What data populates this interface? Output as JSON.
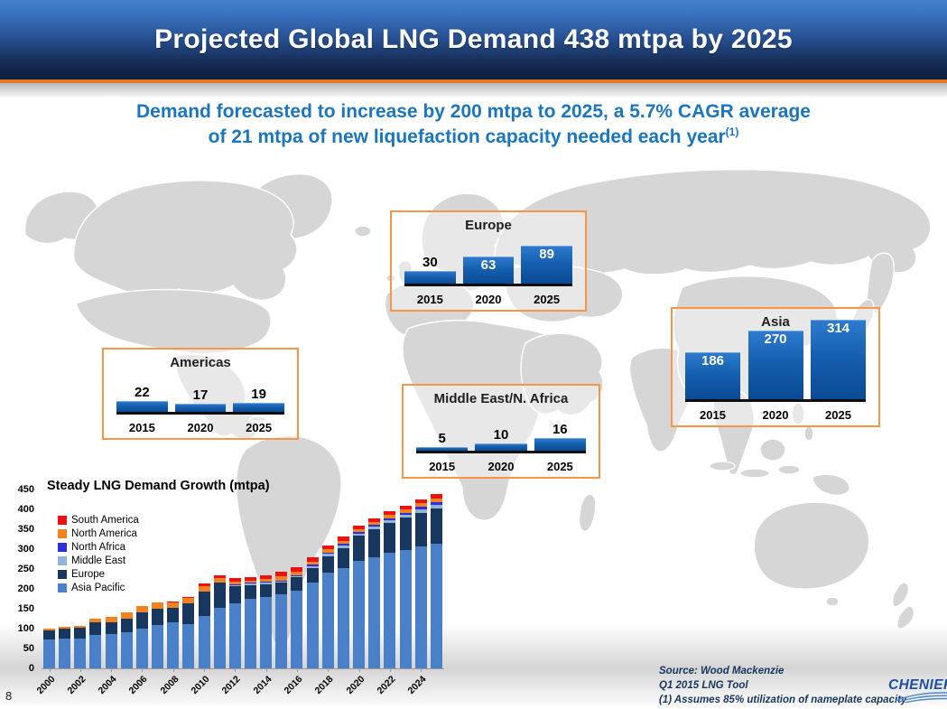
{
  "header": {
    "title": "Projected Global LNG Demand 438 mtpa by 2025"
  },
  "subtitle": {
    "line1": "Demand forecasted to increase by 200 mtpa to 2025, a 5.7% CAGR average",
    "line2": "of 21 mtpa of new liquefaction capacity needed each year",
    "footnote_marker": "(1)"
  },
  "chart_data": [
    {
      "type": "stacked-bar",
      "title": "Steady LNG Demand Growth (mtpa)",
      "xlabel": "",
      "ylabel": "",
      "ylim": [
        0,
        450
      ],
      "yticks": [
        0,
        50,
        100,
        150,
        200,
        250,
        300,
        350,
        400,
        450
      ],
      "grid": false,
      "legend_position": "upper-left",
      "x": [
        2000,
        2001,
        2002,
        2003,
        2004,
        2005,
        2006,
        2007,
        2008,
        2009,
        2010,
        2011,
        2012,
        2013,
        2014,
        2015,
        2016,
        2017,
        2018,
        2019,
        2020,
        2021,
        2022,
        2023,
        2024,
        2025
      ],
      "xtick_labels": [
        "2000",
        "2002",
        "2004",
        "2006",
        "2008",
        "2010",
        "2012",
        "2014",
        "2016",
        "2018",
        "2020",
        "2022",
        "2024"
      ],
      "series": [
        {
          "name": "Asia Pacific",
          "color": "#4a80c8",
          "values": [
            72,
            74,
            76,
            84,
            87,
            90,
            100,
            110,
            115,
            112,
            131,
            153,
            163,
            175,
            180,
            186,
            196,
            215,
            240,
            252,
            270,
            280,
            290,
            298,
            306,
            314
          ]
        },
        {
          "name": "Europe",
          "color": "#17375e",
          "values": [
            24,
            25,
            27,
            31,
            29,
            36,
            41,
            39,
            37,
            51,
            62,
            62,
            44,
            35,
            32,
            30,
            33,
            38,
            43,
            50,
            63,
            70,
            76,
            82,
            86,
            89
          ]
        },
        {
          "name": "Middle East",
          "color": "#92b4d4",
          "values": [
            0,
            0,
            0,
            0,
            0,
            0,
            0,
            0,
            0,
            0,
            1,
            2,
            3,
            4,
            5,
            3,
            4,
            5,
            6,
            7,
            6,
            7,
            7,
            7,
            8,
            8
          ]
        },
        {
          "name": "North Africa",
          "color": "#2e2edf",
          "values": [
            0,
            0,
            0,
            0,
            0,
            0,
            0,
            0,
            0,
            0,
            0,
            0,
            1,
            1,
            1,
            2,
            2,
            3,
            3,
            4,
            4,
            4,
            5,
            5,
            6,
            8
          ]
        },
        {
          "name": "North America",
          "color": "#f08222",
          "values": [
            5,
            5,
            4,
            9,
            14,
            14,
            15,
            16,
            15,
            14,
            13,
            10,
            7,
            6,
            6,
            10,
            9,
            8,
            8,
            8,
            8,
            8,
            8,
            9,
            9,
            9
          ]
        },
        {
          "name": "South America",
          "color": "#ee1111",
          "values": [
            0,
            0,
            0,
            0,
            0,
            0,
            0,
            2,
            2,
            3,
            6,
            8,
            9,
            9,
            10,
            12,
            11,
            11,
            10,
            10,
            9,
            9,
            9,
            9,
            10,
            10
          ]
        }
      ],
      "note": "legend displayed in reverse series order (top segment first)"
    },
    {
      "type": "bar",
      "title": "Americas",
      "categories": [
        "2015",
        "2020",
        "2025"
      ],
      "values": [
        22,
        17,
        19
      ],
      "bar_color": "#1660b0"
    },
    {
      "type": "bar",
      "title": "Europe",
      "categories": [
        "2015",
        "2020",
        "2025"
      ],
      "values": [
        30,
        63,
        89
      ],
      "bar_color": "#1660b0"
    },
    {
      "type": "bar",
      "title": "Middle East/N. Africa",
      "categories": [
        "2015",
        "2020",
        "2025"
      ],
      "values": [
        5,
        10,
        16
      ],
      "bar_color": "#1660b0"
    },
    {
      "type": "bar",
      "title": "Asia",
      "categories": [
        "2015",
        "2020",
        "2025"
      ],
      "values": [
        186,
        270,
        314
      ],
      "bar_color": "#1660b0"
    }
  ],
  "footer": {
    "source_lines": [
      "Source: Wood Mackenzie",
      "Q1 2015 LNG Tool",
      "(1) Assumes 85% utilization of nameplate capacity"
    ],
    "logo_text": "CHENIERE",
    "page_number": "8"
  },
  "colors": {
    "banner_top": "#4580cd",
    "banner_bottom": "#0e1f3d",
    "accent_orange": "#e87722",
    "subtitle_blue": "#1b76be",
    "region_box_border": "#f79646",
    "region_bar_top": "#2e7bcf",
    "region_bar_bottom": "#0a4a94",
    "map_land": "#d6d6d6",
    "source_text": "#17365d",
    "logo_blue": "#1d4fa1"
  }
}
